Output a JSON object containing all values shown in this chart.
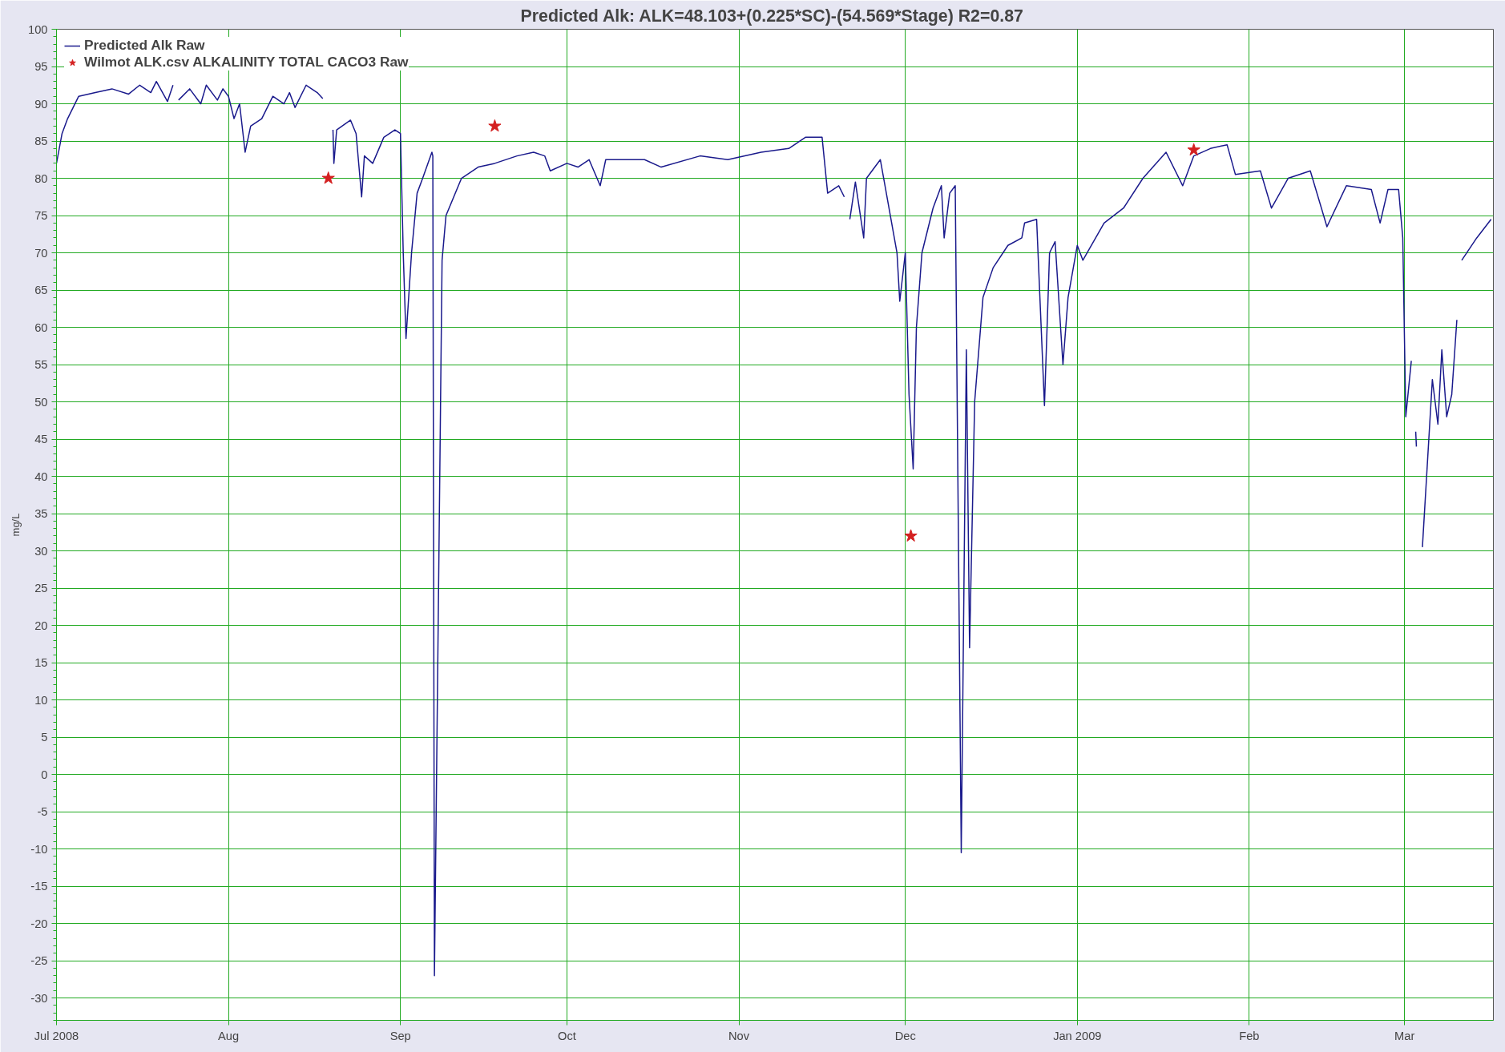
{
  "chart_data": {
    "type": "line",
    "title": "Predicted Alk: ALK=48.103+(0.225*SC)-(54.569*Stage)  R2=0.87",
    "ylabel": "mg/L",
    "xlim": [
      "2008-07-01",
      "2009-03-17"
    ],
    "ylim": [
      -33,
      100
    ],
    "xticks": [
      {
        "value": "2008-07-01",
        "label": "Jul 2008"
      },
      {
        "value": "2008-08-01",
        "label": "Aug"
      },
      {
        "value": "2008-09-01",
        "label": "Sep"
      },
      {
        "value": "2008-10-01",
        "label": "Oct"
      },
      {
        "value": "2008-11-01",
        "label": "Nov"
      },
      {
        "value": "2008-12-01",
        "label": "Dec"
      },
      {
        "value": "2009-01-01",
        "label": "Jan 2009"
      },
      {
        "value": "2009-02-01",
        "label": "Feb"
      },
      {
        "value": "2009-03-01",
        "label": "Mar"
      }
    ],
    "yticks": [
      -30,
      -25,
      -20,
      -15,
      -10,
      -5,
      0,
      5,
      10,
      15,
      20,
      25,
      30,
      35,
      40,
      45,
      50,
      55,
      60,
      65,
      70,
      75,
      80,
      85,
      90,
      95,
      100
    ],
    "grid": true,
    "legend": "top left",
    "series": [
      {
        "name": "Predicted Alk Raw",
        "color": "#1a1a8c",
        "line_style": "solid",
        "marker": "none",
        "x": [
          "2008-07-01",
          "2008-07-02",
          "2008-07-03",
          "2008-07-05",
          "2008-07-08",
          "2008-07-11",
          "2008-07-14",
          "2008-07-16",
          "2008-07-18",
          "2008-07-19",
          "2008-07-21",
          "2008-07-22",
          "2008-07-22T12:00",
          "2008-07-23",
          "2008-07-25",
          "2008-07-27",
          "2008-07-28",
          "2008-07-30",
          "2008-07-31",
          "2008-08-01",
          "2008-08-02",
          "2008-08-03",
          "2008-08-04",
          "2008-08-05",
          "2008-08-07",
          "2008-08-09",
          "2008-08-11",
          "2008-08-12",
          "2008-08-13",
          "2008-08-15",
          "2008-08-17",
          "2008-08-18",
          "2008-08-19",
          "2008-08-19T20:00",
          "2008-08-20",
          "2008-08-20T12:00",
          "2008-08-23",
          "2008-08-24",
          "2008-08-25",
          "2008-08-25T12:00",
          "2008-08-27",
          "2008-08-29",
          "2008-08-31",
          "2008-09-01",
          "2008-09-01T12:00",
          "2008-09-02",
          "2008-09-03",
          "2008-09-04",
          "2008-09-05",
          "2008-09-06T16:00",
          "2008-09-06T20:00",
          "2008-09-07T03:00",
          "2008-09-08T12:00",
          "2008-09-09T05:00",
          "2008-09-12",
          "2008-09-15",
          "2008-09-18",
          "2008-09-22",
          "2008-09-25",
          "2008-09-27",
          "2008-09-28",
          "2008-10-01",
          "2008-10-03",
          "2008-10-05",
          "2008-10-07",
          "2008-10-08",
          "2008-10-15",
          "2008-10-18",
          "2008-10-25",
          "2008-10-30",
          "2008-11-05",
          "2008-11-10",
          "2008-11-13",
          "2008-11-16",
          "2008-11-17",
          "2008-11-19",
          "2008-11-20",
          "2008-11-20T12:00",
          "2008-11-21",
          "2008-11-22",
          "2008-11-23T12:00",
          "2008-11-24",
          "2008-11-26T12:00",
          "2008-11-29T12:00",
          "2008-11-30",
          "2008-12-01",
          "2008-12-01T16:00",
          "2008-12-02T10:00",
          "2008-12-03",
          "2008-12-04",
          "2008-12-06",
          "2008-12-07T12:00",
          "2008-12-08",
          "2008-12-09",
          "2008-12-10",
          "2008-12-11T02:00",
          "2008-12-12",
          "2008-12-12T14:00",
          "2008-12-13T12:00",
          "2008-12-15",
          "2008-12-16T20:00",
          "2008-12-19T12:00",
          "2008-12-22",
          "2008-12-22T12:00",
          "2008-12-24T16:00",
          "2008-12-26T02:00",
          "2008-12-27",
          "2008-12-28",
          "2008-12-29T10:00",
          "2008-12-30T08:00",
          "2009-01-01",
          "2009-01-02",
          "2009-01-05T20:00",
          "2009-01-09T08:00",
          "2009-01-12T20:00",
          "2009-01-17",
          "2009-01-20",
          "2009-01-22",
          "2009-01-25",
          "2009-01-28",
          "2009-01-29T12:00",
          "2009-02-03",
          "2009-02-05",
          "2009-02-08",
          "2009-02-12",
          "2009-02-15",
          "2009-02-18T12:00",
          "2009-02-23",
          "2009-02-24T14:00",
          "2009-02-26",
          "2009-02-27T22:00",
          "2009-02-28T16:00",
          "2009-03-01T05:00",
          "2009-03-02T05:00",
          "2009-03-02T16:00",
          "2009-03-03",
          "2009-03-03T03:00",
          "2009-03-03T12:00",
          "2009-03-04T05:00",
          "2009-03-06",
          "2009-03-07",
          "2009-03-07T17:00",
          "2009-03-08T14:00",
          "2009-03-09T12:00",
          "2009-03-10T10:00",
          "2009-03-10T20:00",
          "2009-03-11T07:00",
          "2009-03-14",
          "2009-03-16T14:00"
        ],
        "values": [
          82,
          86,
          88,
          91,
          91.5,
          92,
          91.3,
          92.5,
          91.5,
          93,
          90.3,
          92.5,
          null,
          90.5,
          92,
          90,
          92.5,
          90.5,
          92,
          91,
          88,
          90,
          83.5,
          87,
          88,
          91,
          90,
          91.5,
          89.5,
          92.5,
          91.5,
          90.7,
          null,
          86.5,
          82,
          86.5,
          87.8,
          86,
          77.5,
          83,
          82,
          85.5,
          86.5,
          86,
          70,
          58.5,
          70,
          78,
          80,
          83.5,
          83,
          -27,
          69,
          75,
          80,
          81.5,
          82,
          83,
          83.5,
          83,
          81,
          82,
          81.5,
          82.5,
          79,
          82.5,
          82.5,
          81.5,
          83,
          82.5,
          83.5,
          84,
          85.5,
          85.5,
          78,
          79,
          77.5,
          null,
          74.5,
          79.5,
          72,
          80,
          82.5,
          70,
          63.5,
          70,
          51,
          41,
          60,
          70,
          76,
          79,
          72,
          78,
          79,
          -10.5,
          57,
          17,
          50,
          64,
          68,
          71,
          72,
          74,
          74.5,
          49.5,
          70,
          71.5,
          55,
          64,
          71,
          69,
          74,
          76,
          80,
          83.5,
          79,
          83,
          84,
          84.5,
          80.5,
          81,
          76,
          80,
          81,
          73.5,
          79,
          78.5,
          74,
          78.5,
          78.5,
          72,
          48,
          55.5,
          null,
          46,
          44,
          null,
          30.5,
          53,
          47,
          57,
          48,
          51,
          61,
          null,
          69,
          72,
          74.5
        ]
      },
      {
        "name": "Wilmot ALK.csv ALKALINITY TOTAL CACO3 Raw",
        "type": "scatter",
        "color": "#d42020",
        "marker": "star",
        "x": [
          "2008-08-19",
          "2008-09-18",
          "2008-12-02",
          "2009-01-22"
        ],
        "values": [
          80,
          87,
          32,
          83.8
        ]
      }
    ]
  }
}
